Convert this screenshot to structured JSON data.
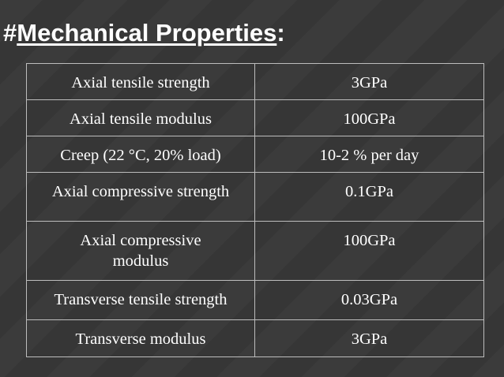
{
  "title": {
    "prefix": "#",
    "text": "Mechanical Properties",
    "suffix": ":"
  },
  "table": {
    "rows": [
      [
        "Axial tensile strength",
        "3GPa"
      ],
      [
        "Axial tensile modulus",
        "100GPa"
      ],
      [
        "Creep (22 °C, 20% load)",
        "10-2 % per day"
      ],
      [
        "Axial compressive strength",
        "0.1GPa"
      ],
      [
        "Axial compressive modulus",
        "100GPa"
      ],
      [
        "Transverse tensile strength",
        "0.03GPa"
      ],
      [
        "Transverse modulus",
        "3GPa"
      ]
    ]
  }
}
